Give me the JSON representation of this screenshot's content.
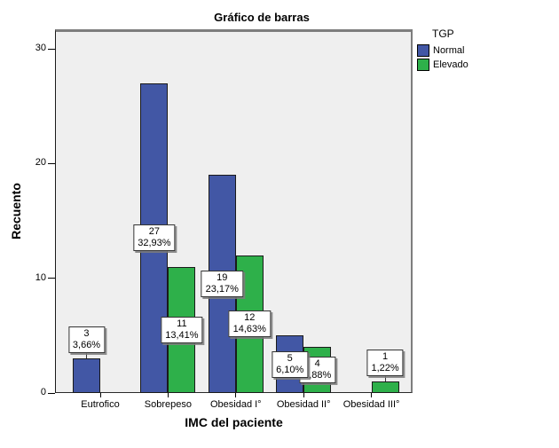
{
  "chart_data": {
    "type": "bar",
    "title": "Gráfico de barras",
    "xlabel": "IMC del paciente",
    "ylabel": "Recuento",
    "categories": [
      "Eutrofico",
      "Sobrepeso",
      "Obesidad I°",
      "Obesidad II°",
      "Obesidad III°"
    ],
    "yticks": [
      0,
      10,
      20,
      30
    ],
    "ylim": [
      0,
      31.7
    ],
    "grid": false,
    "plot_background": "#efefef",
    "legend": {
      "title": "TGP",
      "position": "top-right",
      "entries": [
        "Normal",
        "Elevado"
      ]
    },
    "series": [
      {
        "name": "Normal",
        "color": "#4257a5",
        "values": [
          3,
          27,
          19,
          5,
          null
        ],
        "labels": [
          {
            "count": "3",
            "percent": "3,66%"
          },
          {
            "count": "27",
            "percent": "32,93%"
          },
          {
            "count": "19",
            "percent": "23,17%"
          },
          {
            "count": "5",
            "percent": "6,10%"
          },
          null
        ]
      },
      {
        "name": "Elevado",
        "color": "#2eb04a",
        "values": [
          null,
          11,
          12,
          4,
          1
        ],
        "labels": [
          null,
          {
            "count": "11",
            "percent": "13,41%"
          },
          {
            "count": "12",
            "percent": "14,63%"
          },
          {
            "count": "4",
            "percent": "4,88%"
          },
          {
            "count": "1",
            "percent": "1,22%"
          }
        ]
      }
    ]
  }
}
